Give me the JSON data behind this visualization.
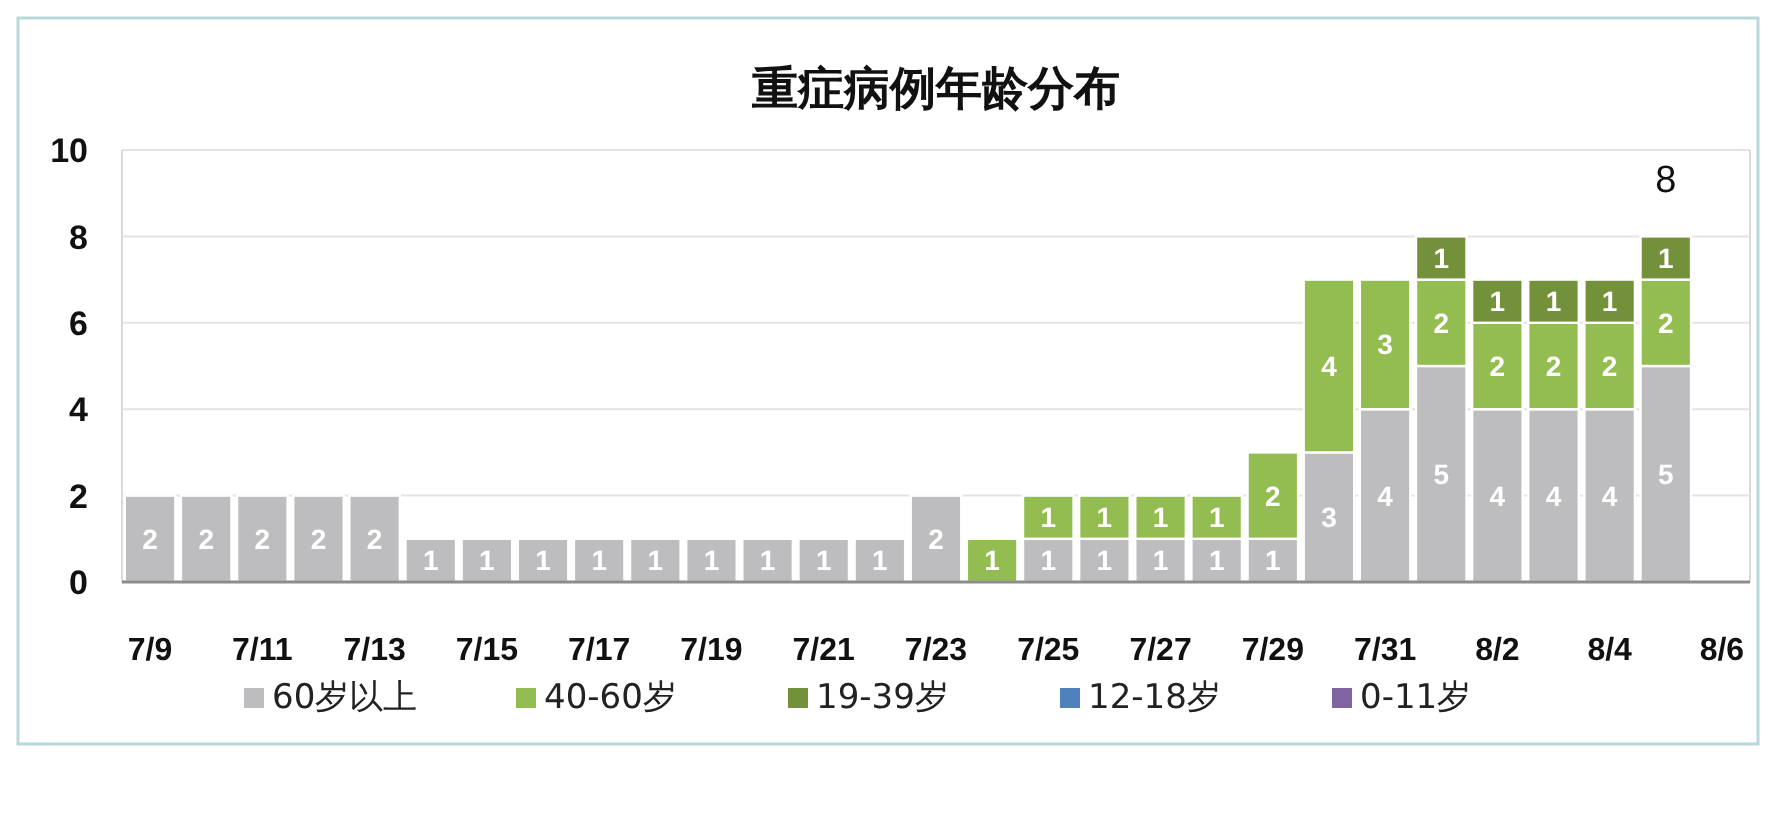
{
  "chart_data": {
    "type": "bar",
    "title": "重症病例年龄分布",
    "categories": [
      "7/9",
      null,
      "7/11",
      null,
      "7/13",
      null,
      "7/15",
      null,
      "7/17",
      null,
      "7/19",
      null,
      "7/21",
      null,
      "7/23",
      null,
      "7/25",
      null,
      "7/27",
      null,
      "7/29",
      null,
      "7/31",
      null,
      "8/2",
      null,
      "8/4",
      null,
      "8/6"
    ],
    "series": [
      {
        "name": "60岁以上",
        "color": "#bdbdc0",
        "values": [
          2,
          2,
          2,
          2,
          2,
          1,
          1,
          1,
          1,
          1,
          1,
          1,
          1,
          1,
          2,
          null,
          1,
          1,
          1,
          1,
          1,
          3,
          4,
          5,
          4,
          4,
          4,
          5,
          null
        ]
      },
      {
        "name": "40-60岁",
        "color": "#93bd50",
        "values": [
          null,
          null,
          null,
          null,
          null,
          null,
          null,
          null,
          null,
          null,
          null,
          null,
          null,
          null,
          null,
          1,
          1,
          1,
          1,
          1,
          2,
          4,
          3,
          2,
          2,
          2,
          2,
          2,
          null
        ]
      },
      {
        "name": "19-39岁",
        "color": "#72913a",
        "values": [
          null,
          null,
          null,
          null,
          null,
          null,
          null,
          null,
          null,
          null,
          null,
          null,
          null,
          null,
          null,
          null,
          null,
          null,
          null,
          null,
          null,
          null,
          null,
          1,
          1,
          1,
          1,
          1,
          null
        ]
      },
      {
        "name": "12-18岁",
        "color": "#4f81bd",
        "values": [
          null,
          null,
          null,
          null,
          null,
          null,
          null,
          null,
          null,
          null,
          null,
          null,
          null,
          null,
          null,
          null,
          null,
          null,
          null,
          null,
          null,
          null,
          null,
          null,
          null,
          null,
          null,
          null,
          null
        ]
      },
      {
        "name": "0-11岁",
        "color": "#8064a2",
        "values": [
          null,
          null,
          null,
          null,
          null,
          null,
          null,
          null,
          null,
          null,
          null,
          null,
          null,
          null,
          null,
          null,
          null,
          null,
          null,
          null,
          null,
          null,
          null,
          null,
          null,
          null,
          null,
          null,
          null
        ]
      }
    ],
    "stacked": true,
    "ylim": [
      0,
      10
    ],
    "yticks": [
      0,
      2,
      4,
      6,
      8,
      10
    ],
    "grid": "y",
    "legend": "bottom",
    "data_labels": true,
    "totals": [
      null,
      null,
      null,
      null,
      null,
      null,
      null,
      null,
      null,
      null,
      null,
      null,
      null,
      null,
      null,
      null,
      null,
      null,
      null,
      null,
      null,
      null,
      null,
      null,
      null,
      null,
      null,
      "8",
      null
    ]
  }
}
